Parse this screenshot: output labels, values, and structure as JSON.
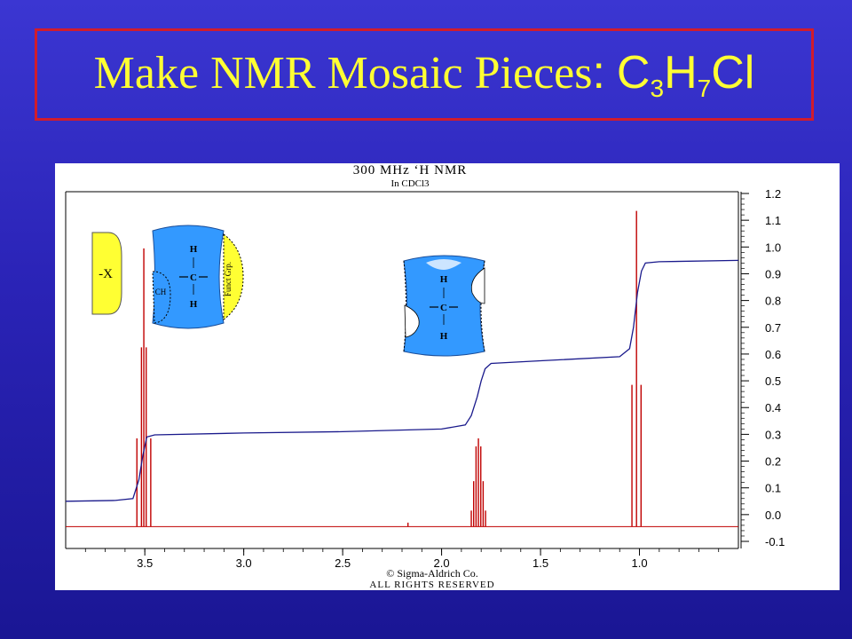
{
  "slide": {
    "title_main": "Make NMR Mosaic Pieces",
    "title_colon": ":",
    "formula": {
      "c": "C",
      "c_count": "3",
      "h": "H",
      "h_count": "7",
      "cl": "Cl"
    }
  },
  "spectrum_header": {
    "line1": "300 MHz ‘H NMR",
    "line2": "In CDCl3"
  },
  "copyright": {
    "line1": "© Sigma-Aldrich Co.",
    "line2": "ALL RIGHTS RESERVED"
  },
  "mosaic": {
    "x_piece_label": "-X",
    "piece1": {
      "h_top": "H",
      "c": "C",
      "h_bottom": "H",
      "left_label": "CH",
      "right_label": "Funct Grp."
    },
    "piece2": {
      "h_top": "H",
      "c": "C",
      "h_bottom": "H"
    }
  },
  "colors": {
    "spectrum": "#c00000",
    "integral": "#1a1a8c",
    "piece_blue": "#3399ff",
    "piece_yellow": "#ffff33"
  },
  "chart_data": {
    "type": "line",
    "title": "300 MHz ‘H NMR",
    "subtitle": "In CDCl3",
    "x_axis": {
      "ticks": [
        3.5,
        3.0,
        2.5,
        2.0,
        1.5,
        1.0
      ],
      "tick_labels": [
        "3.5",
        "3.0",
        "2.5",
        "2.0",
        "1.5",
        "1.0"
      ],
      "range": [
        3.9,
        0.5
      ],
      "reversed": true
    },
    "y_axis": {
      "ticks": [
        -0.1,
        0.0,
        0.1,
        0.2,
        0.3,
        0.4,
        0.5,
        0.6,
        0.7,
        0.8,
        0.9,
        1.0,
        1.1,
        1.2
      ],
      "tick_labels": [
        "-0.1",
        "0.0",
        "0.1",
        "0.2",
        "0.3",
        "0.4",
        "0.5",
        "0.6",
        "0.7",
        "0.8",
        "0.9",
        "1.0",
        "1.1",
        "1.2"
      ],
      "range": [
        -0.1,
        1.2
      ],
      "side": "right"
    },
    "series": [
      {
        "role": "spectrum",
        "baseline": -0.045,
        "peaks": [
          {
            "ppm": 3.54,
            "h": 0.33
          },
          {
            "ppm": 3.517,
            "h": 0.67
          },
          {
            "ppm": 3.505,
            "h": 1.04
          },
          {
            "ppm": 3.493,
            "h": 0.67
          },
          {
            "ppm": 3.47,
            "h": 0.33
          },
          {
            "ppm": 1.85,
            "h": 0.06
          },
          {
            "ppm": 1.838,
            "h": 0.17
          },
          {
            "ppm": 1.826,
            "h": 0.3
          },
          {
            "ppm": 1.814,
            "h": 0.33
          },
          {
            "ppm": 1.802,
            "h": 0.3
          },
          {
            "ppm": 1.79,
            "h": 0.17
          },
          {
            "ppm": 1.778,
            "h": 0.06
          },
          {
            "ppm": 2.17,
            "h": 0.015
          },
          {
            "ppm": 1.038,
            "h": 0.53
          },
          {
            "ppm": 1.015,
            "h": 1.18
          },
          {
            "ppm": 0.992,
            "h": 0.53
          }
        ]
      },
      {
        "role": "integral",
        "points": [
          [
            3.9,
            0.05
          ],
          [
            3.65,
            0.053
          ],
          [
            3.56,
            0.06
          ],
          [
            3.53,
            0.13
          ],
          [
            3.51,
            0.22
          ],
          [
            3.49,
            0.29
          ],
          [
            3.45,
            0.298
          ],
          [
            3.0,
            0.305
          ],
          [
            2.5,
            0.31
          ],
          [
            2.0,
            0.32
          ],
          [
            1.88,
            0.335
          ],
          [
            1.85,
            0.37
          ],
          [
            1.82,
            0.44
          ],
          [
            1.8,
            0.5
          ],
          [
            1.78,
            0.545
          ],
          [
            1.75,
            0.565
          ],
          [
            1.5,
            0.575
          ],
          [
            1.1,
            0.59
          ],
          [
            1.05,
            0.62
          ],
          [
            1.03,
            0.7
          ],
          [
            1.01,
            0.83
          ],
          [
            0.99,
            0.91
          ],
          [
            0.97,
            0.94
          ],
          [
            0.9,
            0.945
          ],
          [
            0.5,
            0.95
          ]
        ]
      }
    ]
  }
}
